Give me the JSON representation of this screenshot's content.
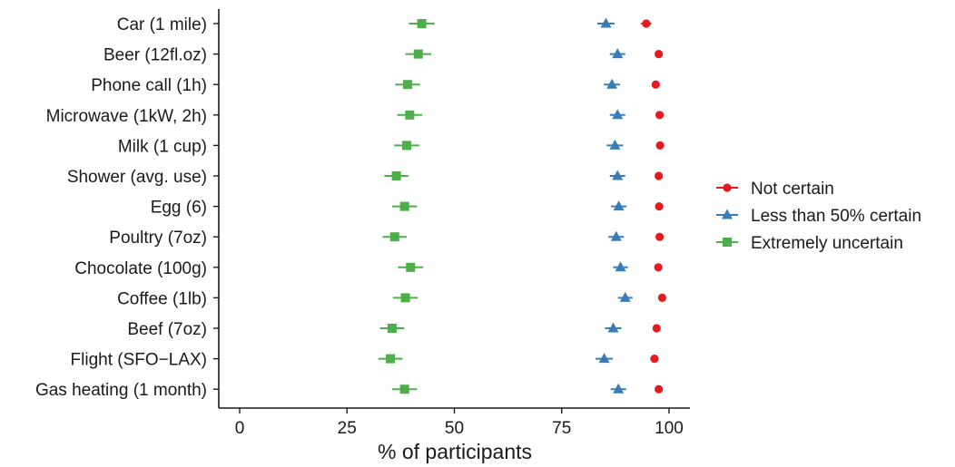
{
  "chart_data": {
    "type": "scatter",
    "subtype": "dot-plot-with-error-bars",
    "title": "",
    "xlabel": "% of participants",
    "ylabel": "",
    "xlim": [
      -4,
      105
    ],
    "xticks": [
      0,
      25,
      50,
      75,
      100
    ],
    "xtick_labels": [
      "0",
      "25",
      "50",
      "75",
      "100"
    ],
    "grid": false,
    "legend_position": "right",
    "categories": [
      "Car (1 mile)",
      "Beer (12fl.oz)",
      "Phone call (1h)",
      "Microwave (1kW, 2h)",
      "Milk (1 cup)",
      "Shower (avg. use)",
      "Egg (6)",
      "Poultry (7oz)",
      "Chocolate (100g)",
      "Coffee (1lb)",
      "Beef (7oz)",
      "Flight (SFO−LAX)",
      "Gas heating (1 month)"
    ],
    "series": [
      {
        "name": "Not certain",
        "color": "#e41a1c",
        "marker": "circle",
        "values": [
          94.7,
          97.6,
          96.9,
          97.8,
          97.9,
          97.6,
          97.7,
          97.8,
          97.5,
          98.4,
          97.1,
          96.6,
          97.6
        ],
        "errors": [
          1.2,
          0.7,
          0.9,
          0.7,
          0.7,
          0.7,
          0.7,
          0.7,
          0.7,
          0.6,
          0.8,
          0.9,
          0.7
        ]
      },
      {
        "name": "Less than 50% certain",
        "color": "#377eb8",
        "marker": "triangle",
        "values": [
          85.3,
          88.0,
          86.7,
          88.0,
          87.4,
          88.0,
          88.3,
          87.7,
          88.7,
          89.8,
          87.0,
          84.9,
          88.2
        ],
        "errors": [
          2.0,
          1.8,
          1.9,
          1.8,
          1.9,
          1.8,
          1.8,
          1.8,
          1.7,
          1.7,
          1.9,
          2.0,
          1.8
        ]
      },
      {
        "name": "Extremely uncertain",
        "color": "#4daf4a",
        "marker": "square",
        "values": [
          42.4,
          41.6,
          39.1,
          39.6,
          38.9,
          36.5,
          38.4,
          36.1,
          39.8,
          38.6,
          35.5,
          35.1,
          38.4
        ],
        "errors": [
          3.0,
          3.0,
          2.9,
          2.9,
          2.9,
          2.8,
          2.9,
          2.8,
          2.9,
          2.9,
          2.8,
          2.8,
          2.9
        ]
      }
    ]
  }
}
